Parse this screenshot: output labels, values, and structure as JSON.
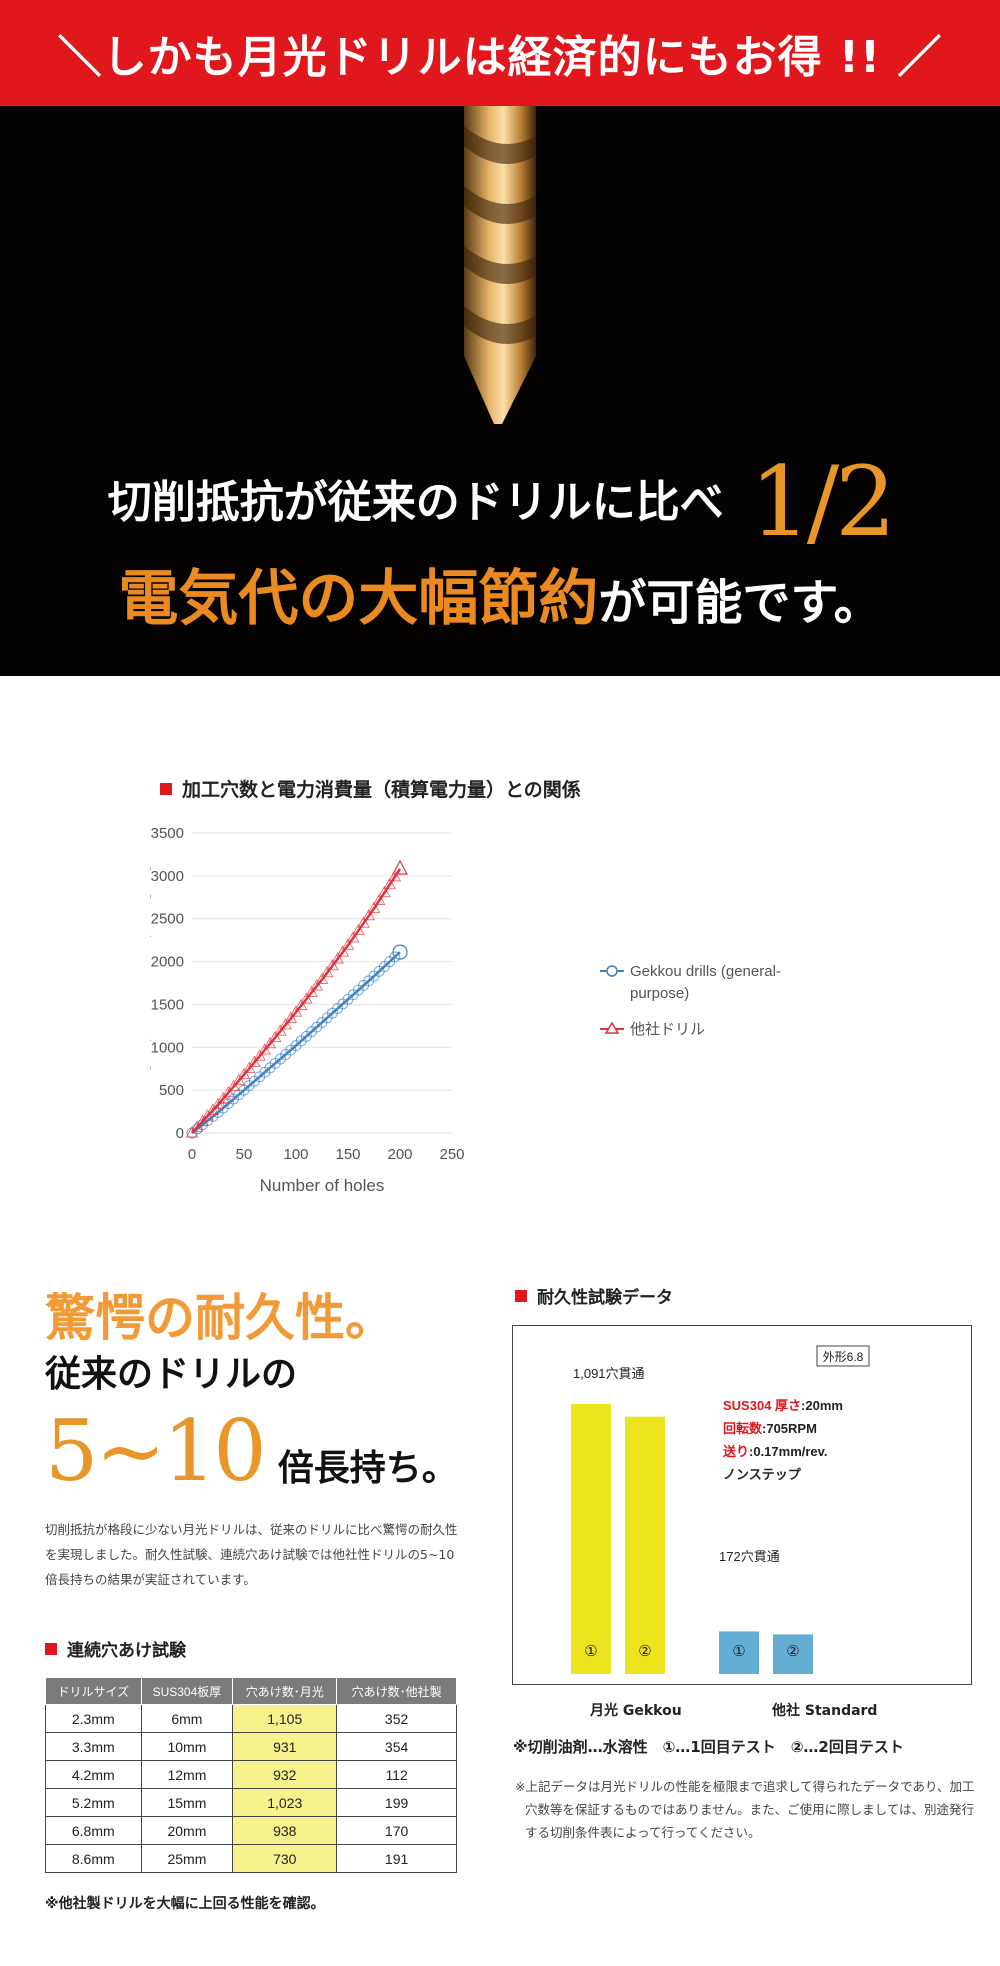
{
  "banner": {
    "text": "＼しかも月光ドリルは経済的にもお得 !! ／"
  },
  "hero": {
    "line1": "切削抵抗が従来のドリルに比べ",
    "fraction": "1/2",
    "highlight": "電気代の大幅節約",
    "line2_rest": "が可能です。"
  },
  "chart_section": {
    "title": "加工穴数と電力消費量（積算電力量）との関係"
  },
  "chart_data": {
    "type": "line",
    "title": "加工穴数と電力消費量（積算電力量）との関係",
    "xlabel": "Number of holes",
    "ylabel": "Integral power consumption [Wh]",
    "xlim": [
      0,
      250
    ],
    "ylim": [
      0,
      3500
    ],
    "xticks": [
      0,
      50,
      100,
      150,
      200,
      250
    ],
    "yticks": [
      0,
      500,
      1000,
      1500,
      2000,
      2500,
      3000,
      3500
    ],
    "grid": true,
    "legend_position": "right",
    "series": [
      {
        "name": "Gekkou drills (general-purpose)",
        "color": "#3b82c4",
        "marker": "circle",
        "x": [
          0,
          25,
          50,
          75,
          100,
          125,
          150,
          175,
          200
        ],
        "y": [
          0,
          240,
          500,
          760,
          1020,
          1290,
          1560,
          1830,
          2110
        ]
      },
      {
        "name": "他社ドリル",
        "color": "#e0313b",
        "marker": "triangle",
        "x": [
          0,
          25,
          50,
          75,
          100,
          125,
          150,
          175,
          200
        ],
        "y": [
          0,
          330,
          680,
          1040,
          1410,
          1790,
          2190,
          2620,
          3080
        ]
      }
    ]
  },
  "durability": {
    "h1": "驚愕の耐久性。",
    "h2": "従来のドリルの",
    "h3_big": "5~10",
    "h3_small": "倍長持ち。",
    "description": "切削抵抗が格段に少ない月光ドリルは、従来のドリルに比べ驚愕の耐久性を実現しました。耐久性試験、連続穴あけ試験では他社性ドリルの5~10倍長持ちの結果が実証されています。"
  },
  "tests": {
    "title": "連続穴あけ試験",
    "headers": [
      "ドリルサイズ",
      "SUS304板厚",
      "穴あけ数･月光",
      "穴あけ数･他社製"
    ],
    "rows": [
      [
        "2.3mm",
        "6mm",
        "1,105",
        "352"
      ],
      [
        "3.3mm",
        "10mm",
        "931",
        "354"
      ],
      [
        "4.2mm",
        "12mm",
        "932",
        "112"
      ],
      [
        "5.2mm",
        "15mm",
        "1,023",
        "199"
      ],
      [
        "6.8mm",
        "20mm",
        "938",
        "170"
      ],
      [
        "8.6mm",
        "25mm",
        "730",
        "191"
      ]
    ],
    "note": "※他社製ドリルを大幅に上回る性能を確認。"
  },
  "durability_chart": {
    "title": "耐久性試験データ",
    "size_badge": "外形6.8",
    "conditions": [
      {
        "label": "SUS304 厚さ",
        "value": ":20mm"
      },
      {
        "label": "回転数",
        "value": ":705RPM"
      },
      {
        "label": "送り",
        "value": ":0.17mm/rev."
      },
      {
        "label": "",
        "value": "ノンステップ"
      }
    ],
    "gekkou_label": "1,091穴貫通",
    "standard_label": "172穴貫通",
    "bar_gekkou_color": "#ede31e",
    "bar_standard_color": "#64add3",
    "bars": [
      {
        "group": "gekkou",
        "mark": "①",
        "value": 1091
      },
      {
        "group": "gekkou",
        "mark": "②",
        "value": 1040
      },
      {
        "group": "standard",
        "mark": "①",
        "value": 172
      },
      {
        "group": "standard",
        "mark": "②",
        "value": 160
      }
    ],
    "category_gekkou": "月光 Gekkou",
    "category_standard": "他社 Standard",
    "legend": "※切削油剤…水溶性　①…1回目テスト　②…2回目テスト",
    "disclaimer": "※上記データは月光ドリルの性能を極限まで追求して得られたデータであり、加工穴数等を保証するものではありません。また、ご使用に際しましては、別途発行する切削条件表によって行ってください。"
  }
}
